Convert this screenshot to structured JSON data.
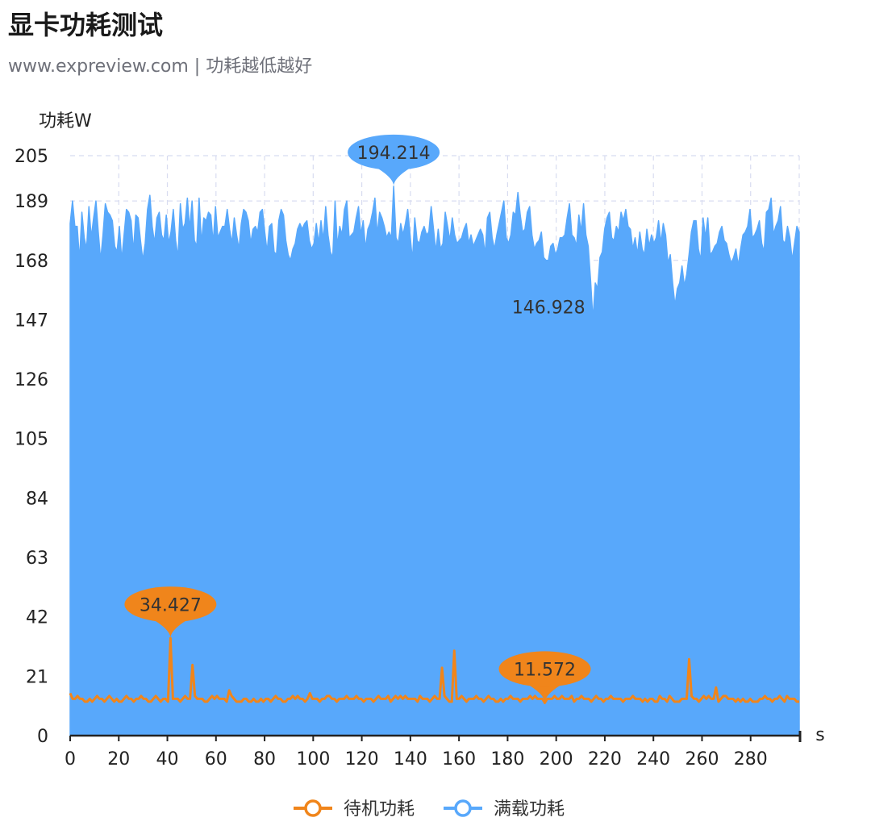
{
  "title": "显卡功耗测试",
  "subtitle": "www.expreview.com | 功耗越低越好",
  "chart_data": {
    "type": "area",
    "ylabel": "功耗W",
    "xlabel": "s",
    "xlim": [
      0,
      300
    ],
    "ylim": [
      0,
      205
    ],
    "y_ticks": [
      0,
      21,
      42,
      63,
      84,
      105,
      126,
      147,
      168,
      189,
      205
    ],
    "x_ticks": [
      0,
      20,
      40,
      60,
      80,
      100,
      120,
      140,
      160,
      180,
      200,
      220,
      240,
      260,
      280
    ],
    "grid": "dashed",
    "legend_position": "bottom",
    "series": [
      {
        "name": "待机功耗",
        "color": "#f0851b",
        "style": "line",
        "values": [
          15,
          13,
          13,
          14,
          13,
          13,
          12,
          12,
          13,
          12,
          13,
          14,
          13,
          13,
          12,
          13,
          14,
          13,
          12,
          13,
          12,
          12,
          13,
          14,
          13,
          13,
          12,
          13,
          13,
          14,
          13,
          13,
          12,
          12,
          13,
          14,
          13,
          12,
          13,
          13,
          12,
          34.427,
          13,
          13,
          13,
          12,
          13,
          14,
          13,
          13,
          25,
          14,
          13,
          13,
          13,
          12,
          12,
          13,
          14,
          13,
          14,
          13,
          13,
          13,
          12,
          16,
          14,
          13,
          12,
          12,
          12,
          13,
          13,
          12,
          12,
          13,
          12,
          12,
          13,
          12,
          13,
          13,
          12,
          13,
          14,
          13,
          13,
          12,
          12,
          13,
          13,
          14,
          13,
          14,
          13,
          13,
          12,
          13,
          15,
          13,
          13,
          13,
          12,
          13,
          13,
          14,
          14,
          13,
          13,
          12,
          13,
          13,
          13,
          14,
          13,
          13,
          13,
          14,
          13,
          13,
          12,
          13,
          13,
          13,
          12,
          13,
          14,
          13,
          13,
          13,
          14,
          12,
          13,
          14,
          13,
          14,
          13,
          14,
          13,
          13,
          13,
          13,
          12,
          14,
          13,
          13,
          13,
          12,
          13,
          14,
          13,
          13,
          24,
          14,
          13,
          12,
          12,
          30,
          13,
          13,
          14,
          13,
          12,
          13,
          13,
          13,
          14,
          13,
          13,
          12,
          13,
          14,
          13,
          13,
          12,
          12,
          13,
          12,
          13,
          13,
          14,
          13,
          13,
          13,
          12,
          13,
          13,
          13,
          14,
          13,
          14,
          13,
          13,
          13,
          11.572,
          13,
          13,
          13,
          14,
          13,
          13,
          14,
          13,
          13,
          13,
          14,
          12,
          13,
          13,
          14,
          13,
          13,
          13,
          12,
          13,
          14,
          13,
          13,
          12,
          13,
          13,
          14,
          13,
          13,
          13,
          13,
          12,
          13,
          13,
          13,
          14,
          13,
          13,
          13,
          12,
          13,
          12,
          13,
          13,
          12,
          12,
          14,
          13,
          13,
          12,
          14,
          13,
          12,
          12,
          12,
          13,
          13,
          13,
          27,
          14,
          13,
          13,
          12,
          13,
          14,
          13,
          14,
          13,
          13,
          17,
          12,
          13,
          14,
          14,
          13,
          13,
          13,
          12,
          13,
          12,
          13,
          12,
          12,
          13,
          12,
          12,
          12,
          13,
          13,
          14,
          13,
          13,
          12,
          13,
          13,
          14,
          13,
          12,
          14,
          13,
          13,
          13,
          12,
          12
        ],
        "markers": [
          {
            "type": "max",
            "label": "34.427"
          },
          {
            "type": "min",
            "label": "11.572"
          }
        ]
      },
      {
        "name": "满载功耗",
        "color": "#58a8fb",
        "style": "area",
        "values": [
          181,
          189,
          180,
          180,
          168,
          185,
          176,
          172,
          187,
          176,
          183,
          189,
          178,
          168,
          177,
          188,
          185,
          184,
          182,
          173,
          171,
          180,
          168,
          177,
          186,
          185,
          182,
          171,
          184,
          183,
          175,
          168,
          174,
          186,
          191,
          180,
          174,
          183,
          185,
          177,
          175,
          184,
          174,
          178,
          186,
          175,
          169,
          188,
          179,
          181,
          190,
          179,
          189,
          175,
          173,
          190,
          174,
          183,
          182,
          185,
          184,
          174,
          187,
          176,
          178,
          180,
          180,
          186,
          179,
          174,
          183,
          177,
          172,
          181,
          186,
          185,
          182,
          174,
          179,
          180,
          178,
          185,
          186,
          178,
          171,
          180,
          181,
          171,
          170,
          182,
          186,
          184,
          175,
          170,
          168,
          172,
          174,
          179,
          181,
          179,
          181,
          182,
          175,
          172,
          174,
          181,
          174,
          182,
          175,
          187,
          177,
          171,
          169,
          189,
          173,
          180,
          177,
          186,
          189,
          176,
          177,
          178,
          183,
          187,
          177,
          182,
          172,
          179,
          181,
          185,
          190,
          177,
          185,
          183,
          180,
          176,
          178,
          176,
          194.214,
          176,
          174,
          181,
          177,
          181,
          186,
          177,
          168,
          183,
          175,
          174,
          178,
          180,
          177,
          178,
          187,
          179,
          171,
          179,
          172,
          174,
          185,
          180,
          175,
          183,
          177,
          174,
          175,
          176,
          179,
          181,
          174,
          177,
          173,
          175,
          177,
          179,
          177,
          170,
          183,
          185,
          176,
          172,
          177,
          181,
          185,
          189,
          176,
          174,
          177,
          185,
          184,
          192,
          184,
          178,
          179,
          185,
          187,
          177,
          172,
          174,
          175,
          178,
          169,
          168,
          168,
          173,
          174,
          170,
          172,
          176,
          176,
          177,
          183,
          188,
          177,
          176,
          173,
          184,
          178,
          188,
          177,
          173,
          161,
          146.928,
          160,
          158,
          169,
          171,
          179,
          183,
          185,
          176,
          175,
          180,
          178,
          185,
          182,
          186,
          180,
          179,
          172,
          176,
          170,
          178,
          172,
          170,
          179,
          173,
          177,
          174,
          176,
          182,
          174,
          181,
          177,
          167,
          170,
          160,
          152,
          158,
          160,
          166,
          159,
          163,
          170,
          178,
          182,
          182,
          172,
          168,
          183,
          176,
          183,
          170,
          171,
          173,
          174,
          178,
          180,
          175,
          174,
          170,
          167,
          169,
          172,
          166,
          172,
          177,
          178,
          180,
          186,
          176,
          177,
          179,
          182,
          174,
          171,
          185,
          186,
          190,
          177,
          180,
          182,
          187,
          175,
          174,
          180,
          176,
          168,
          174,
          180,
          178
        ],
        "markers": [
          {
            "type": "max",
            "label": "194.214"
          },
          {
            "type": "min",
            "label": "146.928"
          }
        ]
      }
    ]
  }
}
